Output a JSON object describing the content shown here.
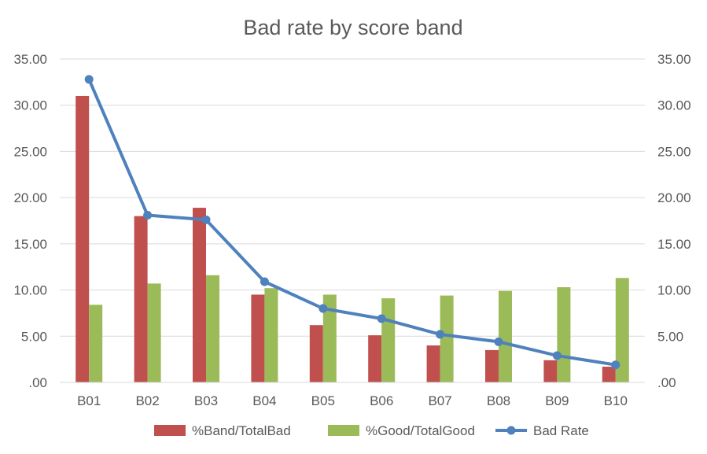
{
  "chart_data": {
    "type": "bar",
    "title": "Bad rate by score band",
    "xlabel": "",
    "ylabel": "",
    "categories": [
      "B01",
      "B02",
      "B03",
      "B04",
      "B05",
      "B06",
      "B07",
      "B08",
      "B09",
      "B10"
    ],
    "series": [
      {
        "name": "%Band/TotalBad",
        "type": "bar",
        "axis": "primary",
        "color": "#C0504D",
        "values": [
          31.0,
          18.0,
          18.9,
          9.5,
          6.2,
          5.1,
          4.0,
          3.5,
          2.4,
          1.7
        ]
      },
      {
        "name": "%Good/TotalGood",
        "type": "bar",
        "axis": "primary",
        "color": "#9BBB59",
        "values": [
          8.4,
          10.7,
          11.6,
          10.2,
          9.5,
          9.1,
          9.4,
          9.9,
          10.3,
          11.3
        ]
      },
      {
        "name": "Bad Rate",
        "type": "line",
        "axis": "secondary",
        "color": "#4F81BD",
        "values": [
          32.8,
          18.1,
          17.6,
          10.9,
          8.0,
          6.9,
          5.2,
          4.4,
          2.9,
          1.9
        ]
      }
    ],
    "ylim": [
      0,
      35
    ],
    "y2lim": [
      0,
      35
    ],
    "yticks": [
      ".00",
      "5.00",
      "10.00",
      "15.00",
      "20.00",
      "25.00",
      "30.00",
      "35.00"
    ],
    "y2ticks": [
      ".00",
      "5.00",
      "10.00",
      "15.00",
      "20.00",
      "25.00",
      "30.00",
      "35.00"
    ],
    "grid": true,
    "legend_position": "bottom"
  }
}
